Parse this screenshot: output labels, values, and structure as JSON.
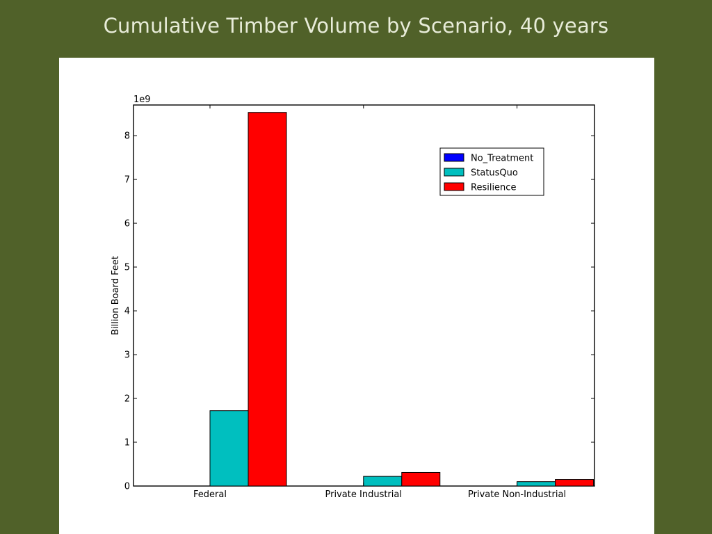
{
  "slide": {
    "title": "Cumulative Timber Volume by Scenario, 40 years"
  },
  "chart_data": {
    "type": "bar",
    "title": "",
    "xlabel": "",
    "ylabel": "Billion Board Feet",
    "y_multiplier_label": "1e9",
    "ylim": [
      0,
      8.7
    ],
    "y_ticks": [
      0,
      1,
      2,
      3,
      4,
      5,
      6,
      7,
      8
    ],
    "categories": [
      "Federal",
      "Private Industrial",
      "Private Non-Industrial"
    ],
    "series": [
      {
        "name": "No_Treatment",
        "color": "#0000ff",
        "values": [
          0,
          0,
          0
        ]
      },
      {
        "name": "StatusQuo",
        "color": "#00bfbf",
        "values": [
          1.72,
          0.22,
          0.1
        ]
      },
      {
        "name": "Resilience",
        "color": "#ff0000",
        "values": [
          8.53,
          0.31,
          0.15
        ]
      }
    ],
    "legend_position": "upper-right",
    "grid": false
  }
}
